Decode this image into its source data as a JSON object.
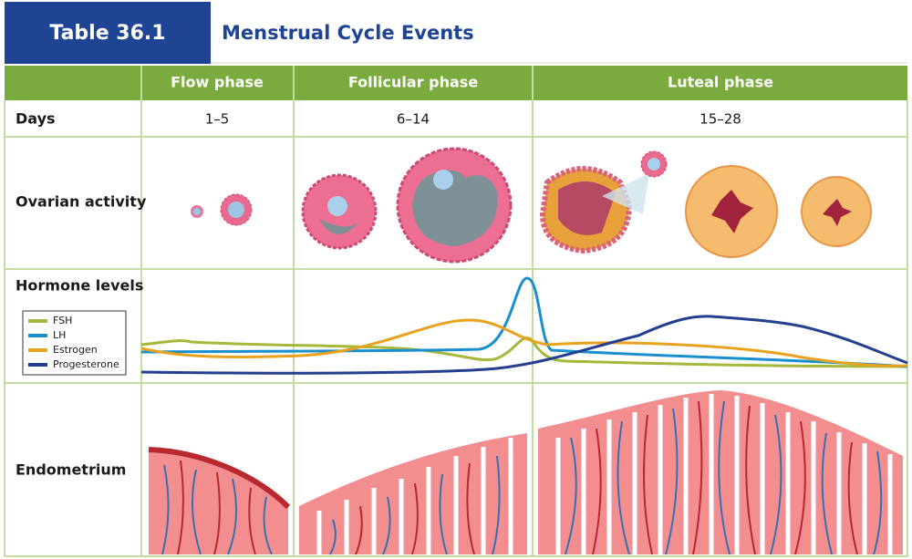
{
  "header": {
    "label": "Table 36.1",
    "title": "Menstrual Cycle Events"
  },
  "table": {
    "columns": [
      "Flow phase",
      "Follicular phase",
      "Luteal phase"
    ],
    "rows": [
      {
        "label": "Days",
        "cells": [
          "1–5",
          "6–14",
          "15–28"
        ]
      },
      {
        "label": "Ovarian activity"
      },
      {
        "label": "Hormone levels"
      },
      {
        "label": "Endometrium"
      }
    ]
  },
  "legend": [
    "FSH",
    "LH",
    "Estrogen",
    "Progesterone"
  ]
}
